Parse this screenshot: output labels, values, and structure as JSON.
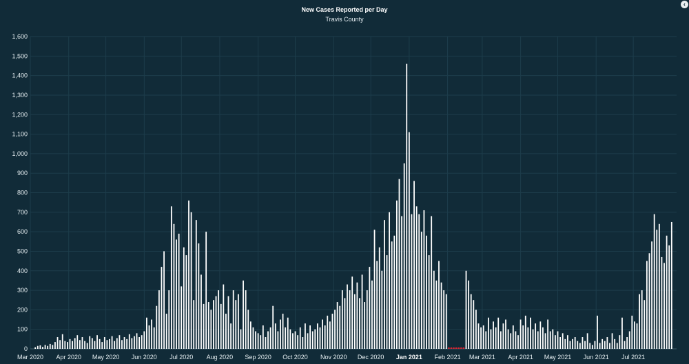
{
  "chart_data": {
    "type": "bar",
    "title": "New Cases Reported per Day",
    "subtitle": "Travis County",
    "xlabel": "",
    "ylabel": "",
    "ylim": [
      0,
      1600
    ],
    "yticks": [
      0,
      100,
      200,
      300,
      400,
      500,
      600,
      700,
      800,
      900,
      1000,
      1100,
      1200,
      1300,
      1400,
      1500,
      1600
    ],
    "ytick_labels": [
      "0",
      "100",
      "200",
      "300",
      "400",
      "500",
      "600",
      "700",
      "800",
      "900",
      "1,000",
      "1,100",
      "1,200",
      "1,300",
      "1,400",
      "1,500",
      "1,600"
    ],
    "xlim": [
      "2020-03-01",
      "2021-08-05"
    ],
    "xticks": [
      {
        "date": "2020-03-01",
        "label": "Mar 2020"
      },
      {
        "date": "2020-04-01",
        "label": "Apr 2020"
      },
      {
        "date": "2020-05-01",
        "label": "May 2020"
      },
      {
        "date": "2020-06-01",
        "label": "Jun 2020"
      },
      {
        "date": "2020-07-01",
        "label": "Jul 2020"
      },
      {
        "date": "2020-08-01",
        "label": "Aug 2020"
      },
      {
        "date": "2020-09-01",
        "label": "Sep 2020"
      },
      {
        "date": "2020-10-01",
        "label": "Oct 2020"
      },
      {
        "date": "2020-11-01",
        "label": "Nov 2020"
      },
      {
        "date": "2020-12-01",
        "label": "Dec 2020"
      },
      {
        "date": "2021-01-01",
        "label": "Jan 2021",
        "bold": true
      },
      {
        "date": "2021-02-01",
        "label": "Feb 2021"
      },
      {
        "date": "2021-03-01",
        "label": "Mar 2021"
      },
      {
        "date": "2021-04-01",
        "label": "Apr 2021"
      },
      {
        "date": "2021-05-01",
        "label": "May 2021"
      },
      {
        "date": "2021-06-01",
        "label": "Jun 2021"
      },
      {
        "date": "2021-07-01",
        "label": "Jul 2021"
      }
    ],
    "grid": true,
    "legend": "none",
    "colors": {
      "bar": "#ffffff",
      "zero_marker": "#e0212e",
      "background": "#112b38",
      "grid": "#1d3d4b"
    },
    "series": [
      {
        "points": [
          [
            "2020-03-05",
            8
          ],
          [
            "2020-03-07",
            15
          ],
          [
            "2020-03-09",
            18
          ],
          [
            "2020-03-11",
            10
          ],
          [
            "2020-03-13",
            20
          ],
          [
            "2020-03-15",
            15
          ],
          [
            "2020-03-17",
            25
          ],
          [
            "2020-03-19",
            20
          ],
          [
            "2020-03-21",
            35
          ],
          [
            "2020-03-23",
            60
          ],
          [
            "2020-03-25",
            45
          ],
          [
            "2020-03-27",
            75
          ],
          [
            "2020-03-29",
            40
          ],
          [
            "2020-03-31",
            35
          ],
          [
            "2020-04-02",
            50
          ],
          [
            "2020-04-04",
            40
          ],
          [
            "2020-04-06",
            55
          ],
          [
            "2020-04-08",
            70
          ],
          [
            "2020-04-10",
            45
          ],
          [
            "2020-04-12",
            60
          ],
          [
            "2020-04-14",
            40
          ],
          [
            "2020-04-16",
            30
          ],
          [
            "2020-04-18",
            65
          ],
          [
            "2020-04-20",
            55
          ],
          [
            "2020-04-22",
            40
          ],
          [
            "2020-04-24",
            70
          ],
          [
            "2020-04-26",
            50
          ],
          [
            "2020-04-28",
            35
          ],
          [
            "2020-04-30",
            60
          ],
          [
            "2020-05-02",
            45
          ],
          [
            "2020-05-04",
            50
          ],
          [
            "2020-05-06",
            65
          ],
          [
            "2020-05-08",
            40
          ],
          [
            "2020-05-10",
            55
          ],
          [
            "2020-05-12",
            70
          ],
          [
            "2020-05-14",
            45
          ],
          [
            "2020-05-16",
            60
          ],
          [
            "2020-05-18",
            50
          ],
          [
            "2020-05-20",
            75
          ],
          [
            "2020-05-22",
            55
          ],
          [
            "2020-05-24",
            65
          ],
          [
            "2020-05-26",
            80
          ],
          [
            "2020-05-28",
            60
          ],
          [
            "2020-05-30",
            70
          ],
          [
            "2020-06-01",
            90
          ],
          [
            "2020-06-03",
            160
          ],
          [
            "2020-06-05",
            120
          ],
          [
            "2020-06-07",
            150
          ],
          [
            "2020-06-09",
            110
          ],
          [
            "2020-06-11",
            220
          ],
          [
            "2020-06-13",
            300
          ],
          [
            "2020-06-15",
            420
          ],
          [
            "2020-06-17",
            500
          ],
          [
            "2020-06-19",
            180
          ],
          [
            "2020-06-21",
            300
          ],
          [
            "2020-06-23",
            730
          ],
          [
            "2020-06-25",
            640
          ],
          [
            "2020-06-27",
            560
          ],
          [
            "2020-06-29",
            590
          ],
          [
            "2020-07-01",
            320
          ],
          [
            "2020-07-03",
            520
          ],
          [
            "2020-07-05",
            480
          ],
          [
            "2020-07-07",
            760
          ],
          [
            "2020-07-09",
            700
          ],
          [
            "2020-07-11",
            250
          ],
          [
            "2020-07-13",
            660
          ],
          [
            "2020-07-15",
            540
          ],
          [
            "2020-07-17",
            380
          ],
          [
            "2020-07-19",
            230
          ],
          [
            "2020-07-21",
            600
          ],
          [
            "2020-07-23",
            240
          ],
          [
            "2020-07-25",
            200
          ],
          [
            "2020-07-27",
            250
          ],
          [
            "2020-07-29",
            270
          ],
          [
            "2020-07-31",
            300
          ],
          [
            "2020-08-02",
            230
          ],
          [
            "2020-08-04",
            330
          ],
          [
            "2020-08-06",
            180
          ],
          [
            "2020-08-08",
            270
          ],
          [
            "2020-08-10",
            130
          ],
          [
            "2020-08-12",
            300
          ],
          [
            "2020-08-14",
            250
          ],
          [
            "2020-08-16",
            280
          ],
          [
            "2020-08-18",
            100
          ],
          [
            "2020-08-20",
            350
          ],
          [
            "2020-08-22",
            300
          ],
          [
            "2020-08-24",
            200
          ],
          [
            "2020-08-26",
            140
          ],
          [
            "2020-08-28",
            110
          ],
          [
            "2020-08-30",
            90
          ],
          [
            "2020-09-01",
            80
          ],
          [
            "2020-09-03",
            70
          ],
          [
            "2020-09-05",
            120
          ],
          [
            "2020-09-07",
            60
          ],
          [
            "2020-09-09",
            90
          ],
          [
            "2020-09-11",
            110
          ],
          [
            "2020-09-13",
            220
          ],
          [
            "2020-09-15",
            130
          ],
          [
            "2020-09-17",
            90
          ],
          [
            "2020-09-19",
            150
          ],
          [
            "2020-09-21",
            180
          ],
          [
            "2020-09-23",
            110
          ],
          [
            "2020-09-25",
            160
          ],
          [
            "2020-09-27",
            100
          ],
          [
            "2020-09-29",
            80
          ],
          [
            "2020-10-01",
            90
          ],
          [
            "2020-10-03",
            70
          ],
          [
            "2020-10-05",
            110
          ],
          [
            "2020-10-07",
            60
          ],
          [
            "2020-10-09",
            130
          ],
          [
            "2020-10-11",
            80
          ],
          [
            "2020-10-13",
            120
          ],
          [
            "2020-10-15",
            90
          ],
          [
            "2020-10-17",
            100
          ],
          [
            "2020-10-19",
            130
          ],
          [
            "2020-10-21",
            110
          ],
          [
            "2020-10-23",
            150
          ],
          [
            "2020-10-25",
            120
          ],
          [
            "2020-10-27",
            170
          ],
          [
            "2020-10-29",
            140
          ],
          [
            "2020-10-31",
            180
          ],
          [
            "2020-11-02",
            200
          ],
          [
            "2020-11-04",
            240
          ],
          [
            "2020-11-06",
            220
          ],
          [
            "2020-11-08",
            300
          ],
          [
            "2020-11-10",
            260
          ],
          [
            "2020-11-12",
            330
          ],
          [
            "2020-11-14",
            300
          ],
          [
            "2020-11-16",
            370
          ],
          [
            "2020-11-18",
            280
          ],
          [
            "2020-11-20",
            340
          ],
          [
            "2020-11-22",
            260
          ],
          [
            "2020-11-24",
            380
          ],
          [
            "2020-11-26",
            240
          ],
          [
            "2020-11-28",
            300
          ],
          [
            "2020-11-30",
            420
          ],
          [
            "2020-12-02",
            350
          ],
          [
            "2020-12-04",
            610
          ],
          [
            "2020-12-06",
            450
          ],
          [
            "2020-12-08",
            520
          ],
          [
            "2020-12-10",
            400
          ],
          [
            "2020-12-12",
            660
          ],
          [
            "2020-12-14",
            480
          ],
          [
            "2020-12-16",
            700
          ],
          [
            "2020-12-18",
            550
          ],
          [
            "2020-12-20",
            580
          ],
          [
            "2020-12-22",
            760
          ],
          [
            "2020-12-24",
            870
          ],
          [
            "2020-12-26",
            680
          ],
          [
            "2020-12-28",
            950
          ],
          [
            "2020-12-30",
            1460
          ],
          [
            "2021-01-01",
            1110
          ],
          [
            "2021-01-03",
            690
          ],
          [
            "2021-01-05",
            860
          ],
          [
            "2021-01-07",
            730
          ],
          [
            "2021-01-09",
            690
          ],
          [
            "2021-01-11",
            600
          ],
          [
            "2021-01-13",
            710
          ],
          [
            "2021-01-15",
            580
          ],
          [
            "2021-01-17",
            480
          ],
          [
            "2021-01-19",
            680
          ],
          [
            "2021-01-21",
            400
          ],
          [
            "2021-01-23",
            350
          ],
          [
            "2021-01-25",
            450
          ],
          [
            "2021-01-27",
            340
          ],
          [
            "2021-01-29",
            300
          ],
          [
            "2021-01-31",
            280
          ],
          [
            "2021-02-02",
            0
          ],
          [
            "2021-02-04",
            0
          ],
          [
            "2021-02-06",
            0
          ],
          [
            "2021-02-08",
            0
          ],
          [
            "2021-02-10",
            0
          ],
          [
            "2021-02-12",
            0
          ],
          [
            "2021-02-14",
            0
          ],
          [
            "2021-02-16",
            400
          ],
          [
            "2021-02-18",
            350
          ],
          [
            "2021-02-20",
            280
          ],
          [
            "2021-02-22",
            250
          ],
          [
            "2021-02-24",
            200
          ],
          [
            "2021-02-26",
            130
          ],
          [
            "2021-02-28",
            110
          ],
          [
            "2021-03-02",
            120
          ],
          [
            "2021-03-04",
            90
          ],
          [
            "2021-03-06",
            160
          ],
          [
            "2021-03-08",
            100
          ],
          [
            "2021-03-10",
            140
          ],
          [
            "2021-03-12",
            110
          ],
          [
            "2021-03-14",
            160
          ],
          [
            "2021-03-16",
            90
          ],
          [
            "2021-03-18",
            130
          ],
          [
            "2021-03-20",
            150
          ],
          [
            "2021-03-22",
            100
          ],
          [
            "2021-03-24",
            80
          ],
          [
            "2021-03-26",
            120
          ],
          [
            "2021-03-28",
            90
          ],
          [
            "2021-03-30",
            70
          ],
          [
            "2021-04-01",
            150
          ],
          [
            "2021-04-03",
            120
          ],
          [
            "2021-04-05",
            170
          ],
          [
            "2021-04-07",
            110
          ],
          [
            "2021-04-09",
            160
          ],
          [
            "2021-04-11",
            100
          ],
          [
            "2021-04-13",
            130
          ],
          [
            "2021-04-15",
            90
          ],
          [
            "2021-04-17",
            140
          ],
          [
            "2021-04-19",
            110
          ],
          [
            "2021-04-21",
            80
          ],
          [
            "2021-04-23",
            150
          ],
          [
            "2021-04-25",
            90
          ],
          [
            "2021-04-27",
            100
          ],
          [
            "2021-04-29",
            70
          ],
          [
            "2021-05-01",
            90
          ],
          [
            "2021-05-03",
            60
          ],
          [
            "2021-05-05",
            80
          ],
          [
            "2021-05-07",
            50
          ],
          [
            "2021-05-09",
            70
          ],
          [
            "2021-05-11",
            40
          ],
          [
            "2021-05-13",
            50
          ],
          [
            "2021-05-15",
            60
          ],
          [
            "2021-05-17",
            40
          ],
          [
            "2021-05-19",
            30
          ],
          [
            "2021-05-21",
            60
          ],
          [
            "2021-05-23",
            40
          ],
          [
            "2021-05-25",
            80
          ],
          [
            "2021-05-27",
            30
          ],
          [
            "2021-05-29",
            20
          ],
          [
            "2021-05-31",
            40
          ],
          [
            "2021-06-02",
            170
          ],
          [
            "2021-06-04",
            30
          ],
          [
            "2021-06-06",
            50
          ],
          [
            "2021-06-08",
            40
          ],
          [
            "2021-06-10",
            60
          ],
          [
            "2021-06-12",
            30
          ],
          [
            "2021-06-14",
            80
          ],
          [
            "2021-06-16",
            50
          ],
          [
            "2021-06-18",
            30
          ],
          [
            "2021-06-20",
            70
          ],
          [
            "2021-06-22",
            160
          ],
          [
            "2021-06-24",
            40
          ],
          [
            "2021-06-26",
            60
          ],
          [
            "2021-06-28",
            90
          ],
          [
            "2021-06-30",
            170
          ],
          [
            "2021-07-02",
            140
          ],
          [
            "2021-07-04",
            130
          ],
          [
            "2021-07-06",
            280
          ],
          [
            "2021-07-08",
            300
          ],
          [
            "2021-07-10",
            250
          ],
          [
            "2021-07-12",
            450
          ],
          [
            "2021-07-14",
            490
          ],
          [
            "2021-07-16",
            550
          ],
          [
            "2021-07-18",
            690
          ],
          [
            "2021-07-20",
            610
          ],
          [
            "2021-07-22",
            640
          ],
          [
            "2021-07-24",
            470
          ],
          [
            "2021-07-26",
            440
          ],
          [
            "2021-07-28",
            580
          ],
          [
            "2021-07-30",
            530
          ],
          [
            "2021-08-01",
            650
          ]
        ]
      }
    ]
  }
}
